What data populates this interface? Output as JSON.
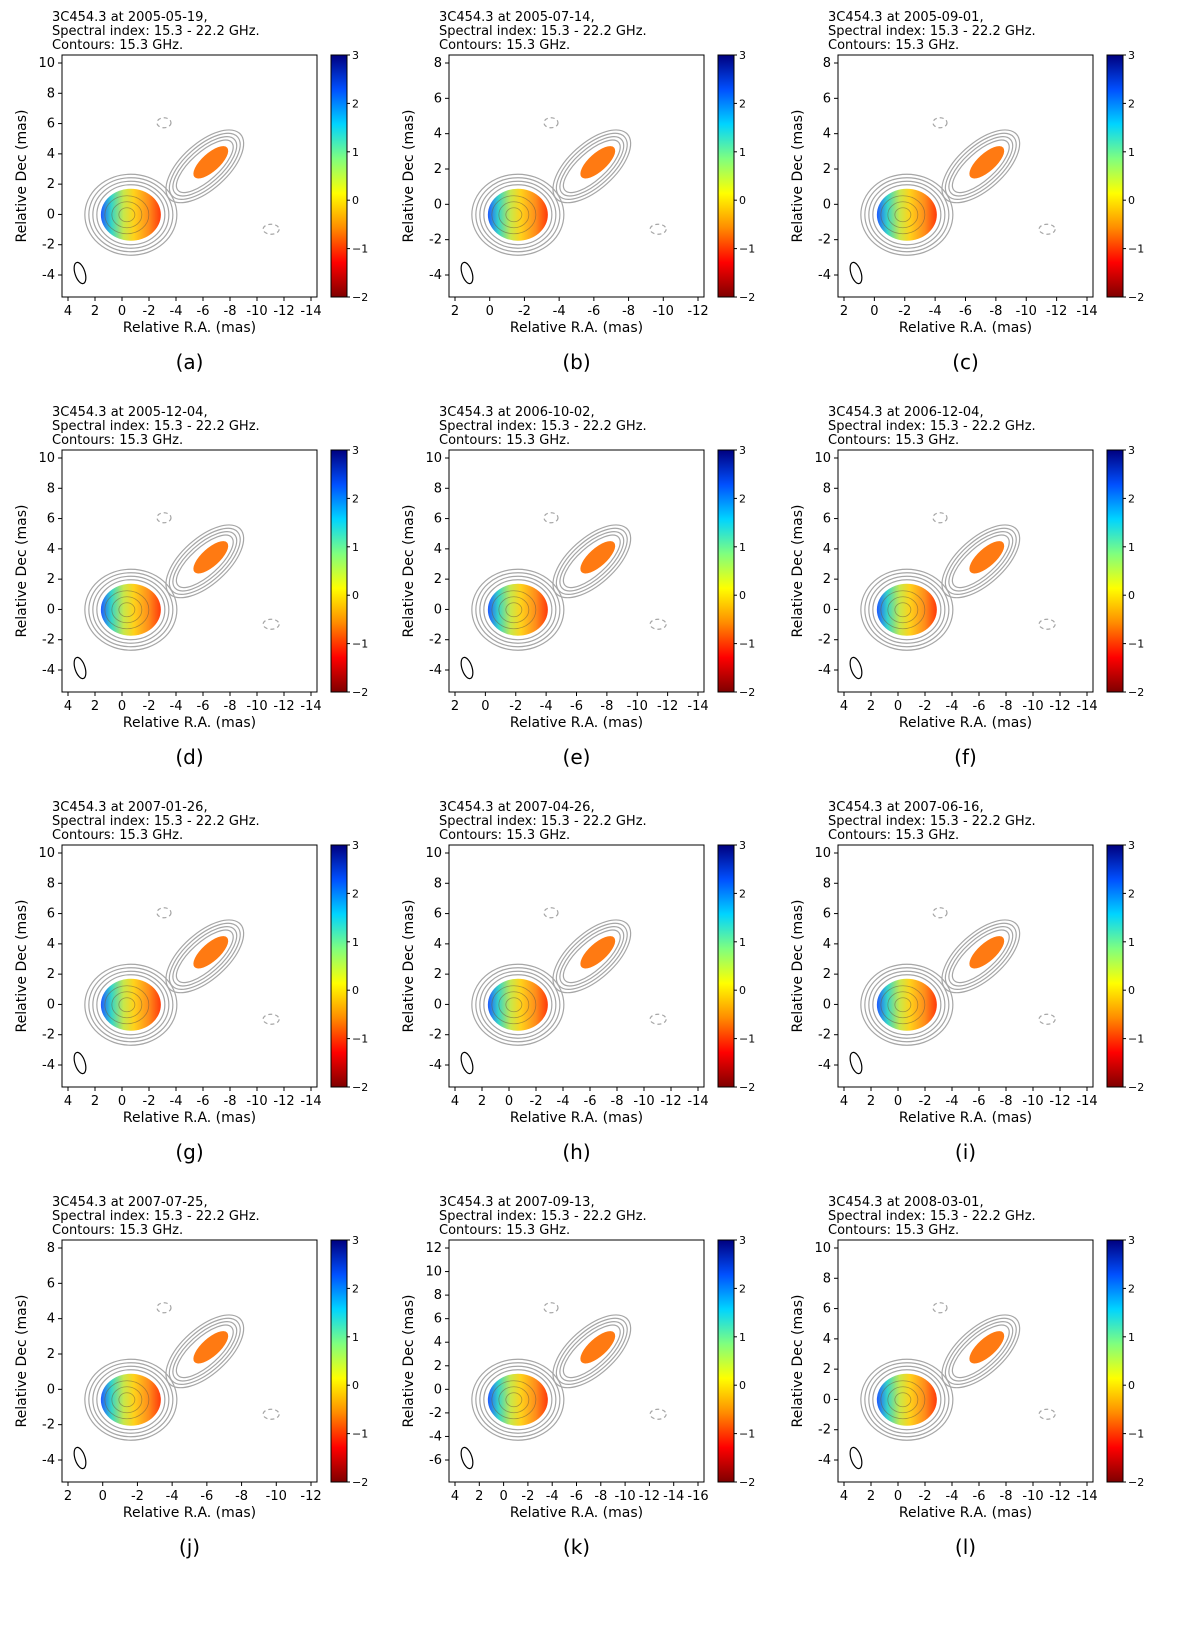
{
  "figure": {
    "xlabel": "Relative R.A. (mas)",
    "ylabel": "Relative Dec (mas)",
    "colorbar_ticks": [
      "3",
      "2",
      "1",
      "0",
      "−1",
      "−2"
    ],
    "colorbar_range": [
      -2,
      3
    ],
    "colormap": [
      "#7f0000",
      "#ff0000",
      "#ff8c00",
      "#ffff00",
      "#7fff7f",
      "#00d4ff",
      "#0050ff",
      "#00007f"
    ],
    "contour_color": "#a6a6a6",
    "panels": [
      {
        "label": "(a)",
        "title_line1": "3C454.3 at 2005-05-19,",
        "title_line2": "Spectral index: 15.3 - 22.2 GHz.",
        "title_line3": "Contours: 15.3 GHz.",
        "xticks": [
          "4",
          "2",
          "0",
          "-2",
          "-4",
          "-6",
          "-8",
          "-10",
          "-12",
          "-14"
        ],
        "yticks": [
          "10",
          "8",
          "6",
          "4",
          "2",
          "0",
          "-2",
          "-4"
        ]
      },
      {
        "label": "(b)",
        "title_line1": "3C454.3 at 2005-07-14,",
        "title_line2": "Spectral index: 15.3 - 22.2 GHz.",
        "title_line3": "Contours: 15.3 GHz.",
        "xticks": [
          "2",
          "0",
          "-2",
          "-4",
          "-6",
          "-8",
          "-10",
          "-12"
        ],
        "yticks": [
          "8",
          "6",
          "4",
          "2",
          "0",
          "-2",
          "-4"
        ]
      },
      {
        "label": "(c)",
        "title_line1": "3C454.3 at 2005-09-01,",
        "title_line2": "Spectral index: 15.3 - 22.2 GHz.",
        "title_line3": "Contours: 15.3 GHz.",
        "xticks": [
          "2",
          "0",
          "-2",
          "-4",
          "-6",
          "-8",
          "-10",
          "-12",
          "-14"
        ],
        "yticks": [
          "8",
          "6",
          "4",
          "2",
          "0",
          "-2",
          "-4"
        ]
      },
      {
        "label": "(d)",
        "title_line1": "3C454.3 at 2005-12-04,",
        "title_line2": "Spectral index: 15.3 - 22.2 GHz.",
        "title_line3": "Contours: 15.3 GHz.",
        "xticks": [
          "4",
          "2",
          "0",
          "-2",
          "-4",
          "-6",
          "-8",
          "-10",
          "-12",
          "-14"
        ],
        "yticks": [
          "10",
          "8",
          "6",
          "4",
          "2",
          "0",
          "-2",
          "-4"
        ]
      },
      {
        "label": "(e)",
        "title_line1": "3C454.3 at 2006-10-02,",
        "title_line2": "Spectral index: 15.3 - 22.2 GHz.",
        "title_line3": "Contours: 15.3 GHz.",
        "xticks": [
          "2",
          "0",
          "-2",
          "-4",
          "-6",
          "-8",
          "-10",
          "-12",
          "-14"
        ],
        "yticks": [
          "10",
          "8",
          "6",
          "4",
          "2",
          "0",
          "-2",
          "-4"
        ]
      },
      {
        "label": "(f)",
        "title_line1": "3C454.3 at 2006-12-04,",
        "title_line2": "Spectral index: 15.3 - 22.2 GHz.",
        "title_line3": "Contours: 15.3 GHz.",
        "xticks": [
          "4",
          "2",
          "0",
          "-2",
          "-4",
          "-6",
          "-8",
          "-10",
          "-12",
          "-14"
        ],
        "yticks": [
          "10",
          "8",
          "6",
          "4",
          "2",
          "0",
          "-2",
          "-4"
        ]
      },
      {
        "label": "(g)",
        "title_line1": "3C454.3 at 2007-01-26,",
        "title_line2": "Spectral index: 15.3 - 22.2 GHz.",
        "title_line3": "Contours: 15.3 GHz.",
        "xticks": [
          "4",
          "2",
          "0",
          "-2",
          "-4",
          "-6",
          "-8",
          "-10",
          "-12",
          "-14"
        ],
        "yticks": [
          "10",
          "8",
          "6",
          "4",
          "2",
          "0",
          "-2",
          "-4"
        ]
      },
      {
        "label": "(h)",
        "title_line1": "3C454.3 at 2007-04-26,",
        "title_line2": "Spectral index: 15.3 - 22.2 GHz.",
        "title_line3": "Contours: 15.3 GHz.",
        "xticks": [
          "4",
          "2",
          "0",
          "-2",
          "-4",
          "-6",
          "-8",
          "-10",
          "-12",
          "-14"
        ],
        "yticks": [
          "10",
          "8",
          "6",
          "4",
          "2",
          "0",
          "-2",
          "-4"
        ]
      },
      {
        "label": "(i)",
        "title_line1": "3C454.3 at 2007-06-16,",
        "title_line2": "Spectral index: 15.3 - 22.2 GHz.",
        "title_line3": "Contours: 15.3 GHz.",
        "xticks": [
          "4",
          "2",
          "0",
          "-2",
          "-4",
          "-6",
          "-8",
          "-10",
          "-12",
          "-14"
        ],
        "yticks": [
          "10",
          "8",
          "6",
          "4",
          "2",
          "0",
          "-2",
          "-4"
        ]
      },
      {
        "label": "(j)",
        "title_line1": "3C454.3 at 2007-07-25,",
        "title_line2": "Spectral index: 15.3 - 22.2 GHz.",
        "title_line3": "Contours: 15.3 GHz.",
        "xticks": [
          "2",
          "0",
          "-2",
          "-4",
          "-6",
          "-8",
          "-10",
          "-12"
        ],
        "yticks": [
          "8",
          "6",
          "4",
          "2",
          "0",
          "-2",
          "-4"
        ]
      },
      {
        "label": "(k)",
        "title_line1": "3C454.3 at 2007-09-13,",
        "title_line2": "Spectral index: 15.3 - 22.2 GHz.",
        "title_line3": "Contours: 15.3 GHz.",
        "xticks": [
          "4",
          "2",
          "0",
          "-2",
          "-4",
          "-6",
          "-8",
          "-10",
          "-12",
          "-14",
          "-16"
        ],
        "yticks": [
          "12",
          "10",
          "8",
          "6",
          "4",
          "2",
          "0",
          "-2",
          "-4",
          "-6"
        ]
      },
      {
        "label": "(l)",
        "title_line1": "3C454.3 at 2008-03-01,",
        "title_line2": "Spectral index: 15.3 - 22.2 GHz.",
        "title_line3": "Contours: 15.3 GHz.",
        "xticks": [
          "4",
          "2",
          "0",
          "-2",
          "-4",
          "-6",
          "-8",
          "-10",
          "-12",
          "-14"
        ],
        "yticks": [
          "10",
          "8",
          "6",
          "4",
          "2",
          "0",
          "-2",
          "-4"
        ]
      }
    ]
  }
}
